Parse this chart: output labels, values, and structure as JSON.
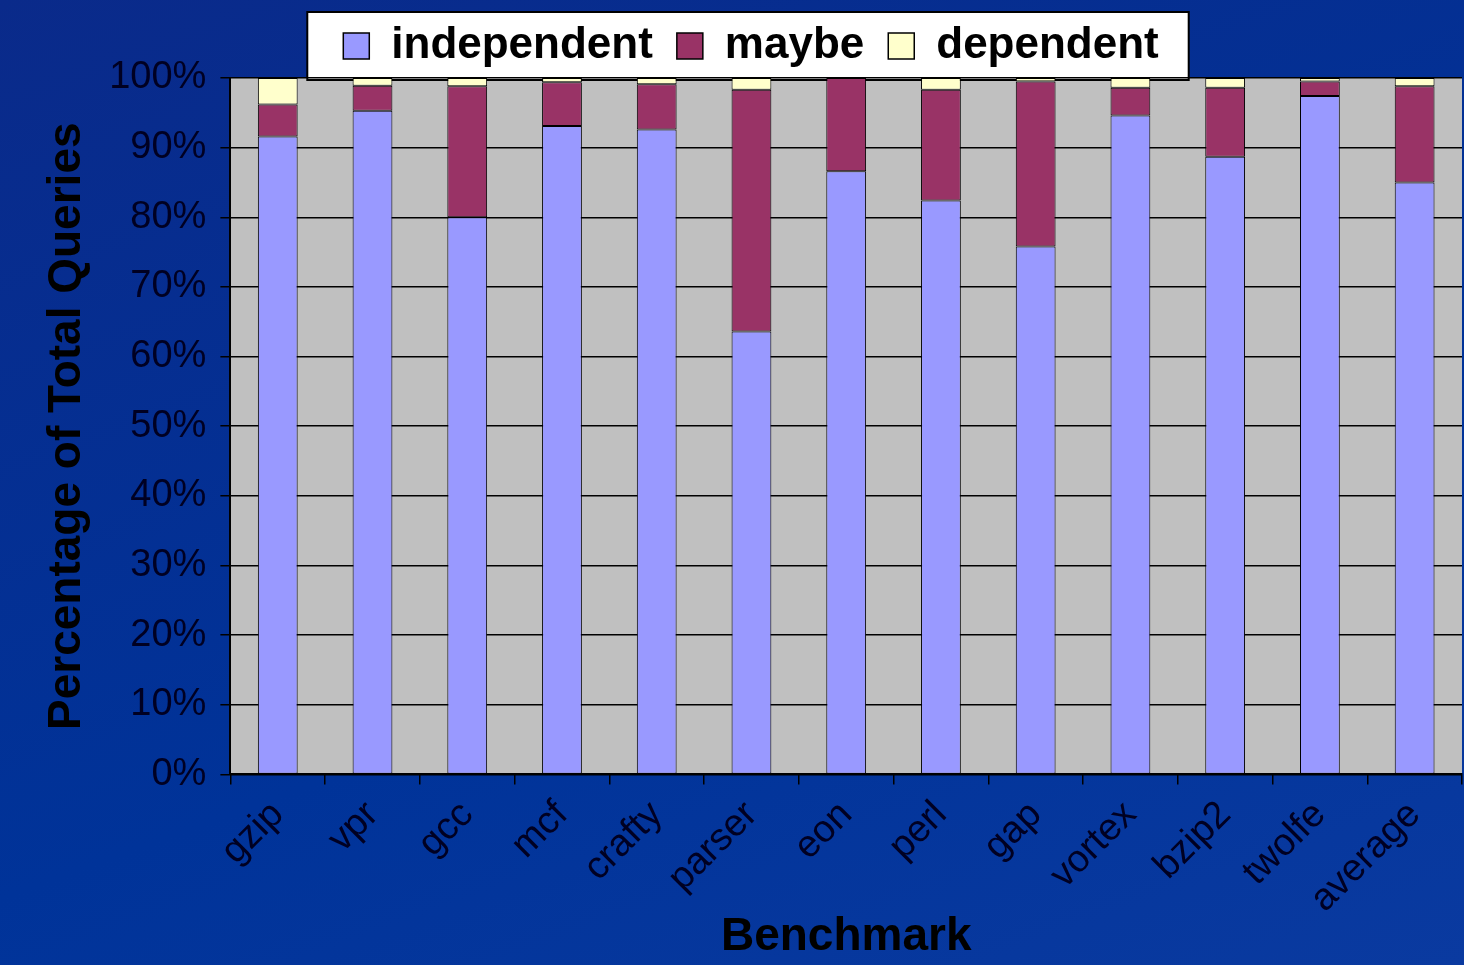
{
  "chart_data": {
    "type": "bar",
    "stacked": true,
    "xlabel": "Benchmark",
    "ylabel": "Percentage of Total Queries",
    "categories": [
      "gzip",
      "vpr",
      "gcc",
      "mcf",
      "crafty",
      "parser",
      "eon",
      "perl",
      "gap",
      "vortex",
      "bzip2",
      "twolfe",
      "average"
    ],
    "series": [
      {
        "name": "independent",
        "color": "#9999ff",
        "values": [
          91.6,
          95.3,
          80.0,
          93.1,
          92.6,
          63.6,
          86.6,
          82.4,
          75.8,
          94.6,
          88.7,
          97.4,
          85.0
        ]
      },
      {
        "name": "maybe",
        "color": "#993366",
        "values": [
          4.6,
          3.6,
          18.8,
          6.3,
          6.5,
          34.7,
          13.4,
          15.9,
          23.7,
          4.0,
          9.9,
          2.1,
          13.8
        ]
      },
      {
        "name": "dependent",
        "color": "#ffffcc",
        "values": [
          3.8,
          1.1,
          1.2,
          0.6,
          0.9,
          1.7,
          0,
          1.7,
          0.5,
          1.4,
          1.4,
          0.5,
          1.2
        ]
      }
    ],
    "ylim": [
      0,
      100
    ],
    "yticks": [
      {
        "value": 0,
        "label": "0%"
      },
      {
        "value": 10,
        "label": "10%"
      },
      {
        "value": 20,
        "label": "20%"
      },
      {
        "value": 30,
        "label": "30%"
      },
      {
        "value": 40,
        "label": "40%"
      },
      {
        "value": 50,
        "label": "50%"
      },
      {
        "value": 60,
        "label": "60%"
      },
      {
        "value": 70,
        "label": "70%"
      },
      {
        "value": 80,
        "label": "80%"
      },
      {
        "value": 90,
        "label": "90%"
      },
      {
        "value": 100,
        "label": "100%"
      }
    ],
    "grid": "y",
    "legend": "top"
  }
}
